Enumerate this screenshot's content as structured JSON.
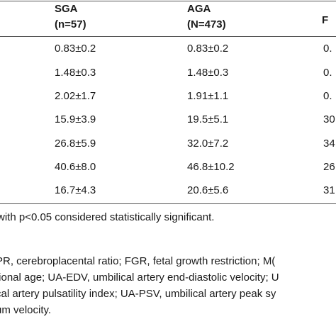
{
  "table": {
    "columns": [
      {
        "name": "SGA",
        "n": "(n=57)"
      },
      {
        "name": "AGA",
        "n": "(N=473)"
      },
      {
        "name": "F",
        "n": ""
      }
    ],
    "rows": [
      {
        "sga": "0.83±0.2",
        "aga": "0.83±0.2",
        "p": "0."
      },
      {
        "sga": "1.48±0.3",
        "aga": "1.48±0.3",
        "p": "0."
      },
      {
        "sga": "2.02±1.7",
        "aga": "1.91±1.1",
        "p": "0."
      },
      {
        "sga": "15.9±3.9",
        "aga": "19.5±5.1",
        "p": "30"
      },
      {
        "sga": "26.8±5.9",
        "aga": "32.0±7.2",
        "p": "34"
      },
      {
        "sga": "40.6±8.0",
        "aga": "46.8±10.2",
        "p": "26"
      },
      {
        "sga": "16.7±4.3",
        "aga": "20.6±5.6",
        "p": "31"
      }
    ]
  },
  "footnote": {
    "significance": "with p<0.05 considered statistically significant.",
    "abbrev_lines": [
      "PR, cerebroplacental ratio; FGR, fetal growth restriction; M(",
      "tional age; UA-EDV, umbilical artery end-diastolic velocity; U",
      "cal artery pulsatility index; UA-PSV, umbilical artery peak sy",
      "um velocity."
    ]
  }
}
